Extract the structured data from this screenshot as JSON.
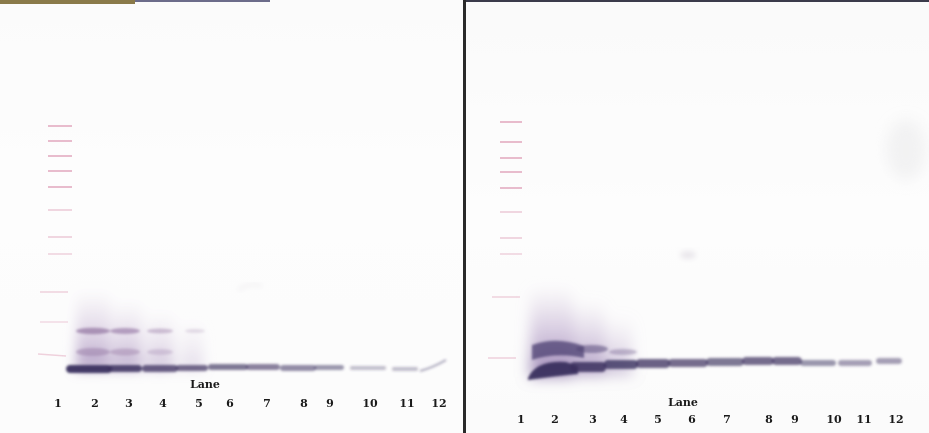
{
  "panels": [
    {
      "id": "left",
      "lane_axis_title": "Lane",
      "lanes": [
        "1",
        "2",
        "3",
        "4",
        "5",
        "6",
        "7",
        "8",
        "9",
        "10",
        "11",
        "12"
      ]
    },
    {
      "id": "right",
      "lane_axis_title": "Lane",
      "lanes": [
        "1",
        "2",
        "3",
        "4",
        "5",
        "6",
        "7",
        "8",
        "9",
        "10",
        "11",
        "12"
      ]
    }
  ],
  "colors": {
    "band": "#3a2f5e",
    "ladder": "#d98aa8",
    "smear": "#b9a3c4",
    "divider": "#2a2a2a"
  }
}
